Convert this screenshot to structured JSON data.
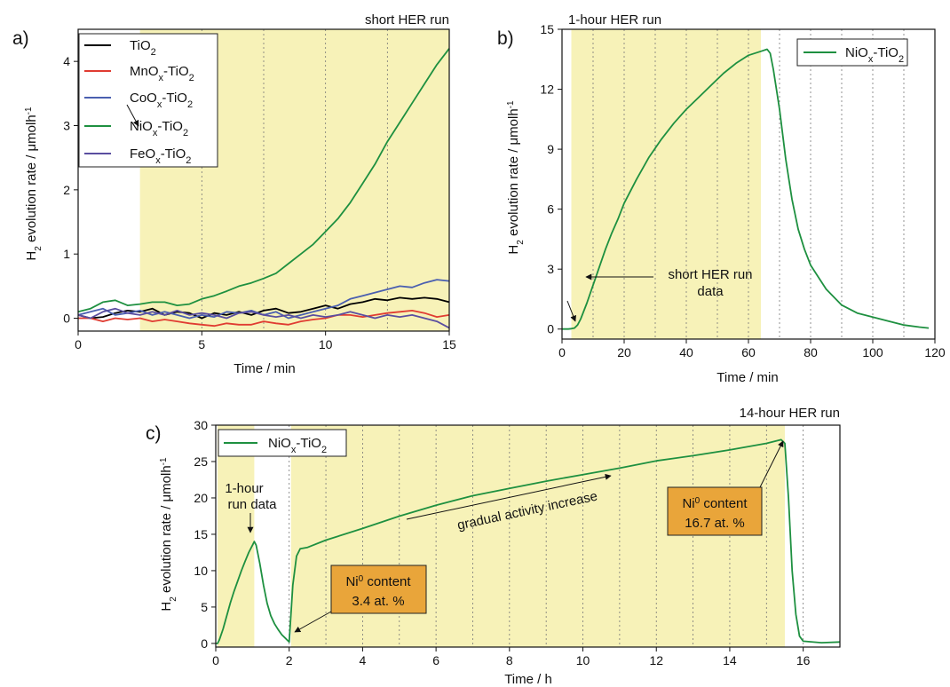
{
  "chart_data": [
    {
      "panel_label": "a)",
      "type": "line",
      "run_label": "short HER run",
      "xlabel": "Time / min",
      "ylabel_parts": [
        "H",
        "2",
        " evolution rate / μmolh",
        "-1"
      ],
      "xlim": [
        0,
        15
      ],
      "ylim": [
        -0.2,
        4.5
      ],
      "xticks": [
        "0",
        "5",
        "10",
        "15"
      ],
      "yticks": [
        "0",
        "1",
        "2",
        "3",
        "4"
      ],
      "illumination_start": 2.5,
      "dashed_lines": [
        5,
        7.5,
        10,
        12.5
      ],
      "colors": {
        "TiO2": "#000000",
        "MnOx": "#e03c32",
        "CoOx": "#4a5fb0",
        "NiOx": "#1e9040",
        "FeOx": "#5a4ea0",
        "shade": "#f7f2b8"
      },
      "legend": [
        {
          "key": "TiO2",
          "parts": [
            "TiO",
            "2",
            "",
            ""
          ]
        },
        {
          "key": "MnOx",
          "parts": [
            "MnO",
            "x",
            "-TiO",
            "2"
          ]
        },
        {
          "key": "CoOx",
          "parts": [
            "CoO",
            "x",
            "-TiO",
            "2"
          ]
        },
        {
          "key": "NiOx",
          "parts": [
            "NiO",
            "x",
            "-TiO",
            "2"
          ]
        },
        {
          "key": "FeOx",
          "parts": [
            "FeO",
            "x",
            "-TiO",
            "2"
          ]
        }
      ],
      "series": [
        {
          "key": "TiO2",
          "x": [
            0,
            0.5,
            1,
            1.5,
            2,
            2.5,
            3,
            3.5,
            4,
            4.5,
            5,
            5.5,
            6,
            6.5,
            7,
            7.5,
            8,
            8.5,
            9,
            9.5,
            10,
            10.5,
            11,
            11.5,
            12,
            12.5,
            13,
            13.5,
            14,
            14.5,
            15
          ],
          "y": [
            0.05,
            0.0,
            0.02,
            0.08,
            0.12,
            0.1,
            0.15,
            0.05,
            0.1,
            0.08,
            0.0,
            0.08,
            0.05,
            0.1,
            0.05,
            0.12,
            0.15,
            0.08,
            0.1,
            0.15,
            0.2,
            0.15,
            0.22,
            0.25,
            0.3,
            0.28,
            0.32,
            0.3,
            0.32,
            0.3,
            0.25
          ]
        },
        {
          "key": "MnOx",
          "x": [
            0,
            0.5,
            1,
            1.5,
            2,
            2.5,
            3,
            3.5,
            4,
            4.5,
            5,
            5.5,
            6,
            6.5,
            7,
            7.5,
            8,
            8.5,
            9,
            9.5,
            10,
            10.5,
            11,
            11.5,
            12,
            12.5,
            13,
            13.5,
            14,
            14.5,
            15
          ],
          "y": [
            0.0,
            0.0,
            -0.05,
            0.0,
            -0.02,
            0.0,
            -0.05,
            -0.02,
            -0.05,
            -0.08,
            -0.1,
            -0.12,
            -0.08,
            -0.1,
            -0.1,
            -0.05,
            -0.08,
            -0.1,
            -0.05,
            -0.02,
            0.0,
            0.05,
            0.05,
            0.02,
            0.05,
            0.08,
            0.1,
            0.12,
            0.08,
            0.02,
            0.05
          ]
        },
        {
          "key": "CoOx",
          "x": [
            0,
            0.5,
            1,
            1.5,
            2,
            2.5,
            3,
            3.5,
            4,
            4.5,
            5,
            5.5,
            6,
            6.5,
            7,
            7.5,
            8,
            8.5,
            9,
            9.5,
            10,
            10.5,
            11,
            11.5,
            12,
            12.5,
            13,
            13.5,
            14,
            14.5,
            15
          ],
          "y": [
            0.05,
            0.1,
            0.15,
            0.05,
            0.08,
            0.12,
            0.05,
            0.1,
            0.05,
            0.0,
            0.05,
            0.02,
            0.1,
            0.08,
            0.12,
            0.05,
            0.1,
            0.0,
            0.05,
            0.1,
            0.15,
            0.2,
            0.3,
            0.35,
            0.4,
            0.45,
            0.5,
            0.48,
            0.55,
            0.6,
            0.58
          ]
        },
        {
          "key": "NiOx",
          "x": [
            0,
            0.5,
            1,
            1.5,
            2,
            2.5,
            3,
            3.5,
            4,
            4.5,
            5,
            5.5,
            6,
            6.5,
            7,
            7.5,
            8,
            8.5,
            9,
            9.5,
            10,
            10.5,
            11,
            11.5,
            12,
            12.5,
            13,
            13.5,
            14,
            14.5,
            15
          ],
          "y": [
            0.1,
            0.15,
            0.25,
            0.28,
            0.2,
            0.22,
            0.25,
            0.25,
            0.2,
            0.22,
            0.3,
            0.35,
            0.42,
            0.5,
            0.55,
            0.62,
            0.7,
            0.85,
            1.0,
            1.15,
            1.35,
            1.55,
            1.8,
            2.1,
            2.4,
            2.75,
            3.05,
            3.35,
            3.65,
            3.95,
            4.2
          ]
        },
        {
          "key": "FeOx",
          "x": [
            0,
            0.5,
            1,
            1.5,
            2,
            2.5,
            3,
            3.5,
            4,
            4.5,
            5,
            5.5,
            6,
            6.5,
            7,
            7.5,
            8,
            8.5,
            9,
            9.5,
            10,
            10.5,
            11,
            11.5,
            12,
            12.5,
            13,
            13.5,
            14,
            14.5,
            15
          ],
          "y": [
            0.05,
            0.0,
            0.1,
            0.15,
            0.08,
            0.05,
            0.1,
            0.05,
            0.12,
            0.05,
            0.08,
            0.05,
            0.0,
            0.08,
            0.1,
            0.05,
            0.02,
            0.05,
            0.0,
            0.05,
            0.02,
            0.05,
            0.1,
            0.05,
            0.0,
            0.05,
            0.02,
            0.05,
            0.0,
            -0.05,
            -0.15
          ]
        }
      ]
    },
    {
      "panel_label": "b)",
      "type": "line",
      "run_label": "1-hour HER run",
      "xlabel": "Time / min",
      "ylabel_parts": [
        "H",
        "2",
        " evolution rate / μmolh",
        "-1"
      ],
      "xlim": [
        0,
        120
      ],
      "ylim": [
        -0.5,
        15
      ],
      "xticks": [
        "0",
        "20",
        "40",
        "60",
        "80",
        "100",
        "120"
      ],
      "yticks": [
        "0",
        "3",
        "6",
        "9",
        "12",
        "15"
      ],
      "illumination": [
        3,
        64
      ],
      "dashed_lines": [
        10,
        20,
        30,
        40,
        50,
        60,
        70,
        80,
        90,
        100,
        110
      ],
      "legend": [
        {
          "key": "NiOx",
          "parts": [
            "NiO",
            "x",
            "-TiO",
            "2"
          ]
        }
      ],
      "annotation": {
        "lines": [
          "short HER run",
          "data"
        ],
        "x": 19,
        "y": 2.6
      },
      "series": [
        {
          "key": "NiOx",
          "x": [
            0,
            2,
            3,
            4,
            5,
            6,
            8,
            10,
            12,
            14,
            16,
            18,
            20,
            24,
            28,
            32,
            36,
            40,
            44,
            48,
            52,
            56,
            60,
            64,
            66,
            67,
            68,
            70,
            72,
            74,
            76,
            78,
            80,
            85,
            90,
            95,
            100,
            105,
            110,
            115,
            118
          ],
          "y": [
            0.0,
            0.0,
            0.02,
            0.05,
            0.2,
            0.5,
            1.3,
            2.2,
            3.1,
            4.0,
            4.8,
            5.5,
            6.3,
            7.5,
            8.6,
            9.5,
            10.3,
            11.0,
            11.6,
            12.2,
            12.8,
            13.3,
            13.7,
            13.9,
            14.0,
            13.8,
            13.0,
            11.0,
            8.5,
            6.5,
            5.0,
            4.0,
            3.2,
            2.0,
            1.2,
            0.8,
            0.6,
            0.4,
            0.2,
            0.1,
            0.05
          ]
        }
      ]
    },
    {
      "panel_label": "c)",
      "type": "line",
      "run_label": "14-hour HER run",
      "xlabel": "Time / h",
      "ylabel_parts": [
        "H",
        "2",
        " evolution rate / μmolh",
        "-1"
      ],
      "xlim": [
        0,
        17
      ],
      "ylim": [
        -0.5,
        30
      ],
      "xticks": [
        "0",
        "2",
        "4",
        "6",
        "8",
        "10",
        "12",
        "14",
        "16"
      ],
      "yticks": [
        "0",
        "5",
        "10",
        "15",
        "20",
        "25",
        "30"
      ],
      "illumination": [
        [
          0.05,
          1.05
        ],
        [
          2.05,
          15.5
        ]
      ],
      "dashed_lines": [
        2,
        3,
        4,
        5,
        6,
        7,
        8,
        9,
        10,
        11,
        12,
        13,
        14,
        15,
        16
      ],
      "legend": [
        {
          "key": "NiOx",
          "parts": [
            "NiO",
            "x",
            "-TiO",
            "2"
          ]
        }
      ],
      "series": [
        {
          "key": "NiOx",
          "x": [
            0,
            0.05,
            0.1,
            0.2,
            0.3,
            0.4,
            0.5,
            0.6,
            0.7,
            0.8,
            0.9,
            1.0,
            1.05,
            1.1,
            1.2,
            1.3,
            1.4,
            1.5,
            1.6,
            1.7,
            1.8,
            1.9,
            2.0,
            2.1,
            2.2,
            2.3,
            2.5,
            3,
            4,
            5,
            6,
            7,
            8,
            9,
            10,
            11,
            12,
            13,
            14,
            15,
            15.4,
            15.5,
            15.6,
            15.7,
            15.8,
            15.9,
            16,
            16.5,
            17
          ],
          "y": [
            0,
            0,
            0.5,
            2.0,
            3.8,
            5.6,
            7.2,
            8.6,
            10.0,
            11.3,
            12.5,
            13.5,
            14.0,
            13.5,
            11.0,
            8.0,
            5.5,
            3.8,
            2.7,
            1.9,
            1.2,
            0.7,
            0.2,
            8.0,
            12.0,
            13.0,
            13.2,
            14.2,
            15.8,
            17.5,
            19.0,
            20.3,
            21.3,
            22.3,
            23.2,
            24.1,
            25.1,
            25.8,
            26.6,
            27.5,
            28.0,
            27.5,
            20.0,
            10.0,
            4.0,
            1.0,
            0.3,
            0.1,
            0.2
          ]
        }
      ],
      "annotations": [
        {
          "id": "one-hour",
          "lines": [
            "1-hour",
            "run data"
          ]
        },
        {
          "id": "gradual",
          "text": "gradual activity increase"
        }
      ],
      "content_boxes": [
        {
          "id": "ni-content-low",
          "line1_parts": [
            "Ni",
            "0",
            " content"
          ],
          "line2": "3.4 at. %"
        },
        {
          "id": "ni-content-high",
          "line1_parts": [
            "Ni",
            "0",
            " content"
          ],
          "line2": "16.7 at. %"
        }
      ]
    }
  ]
}
